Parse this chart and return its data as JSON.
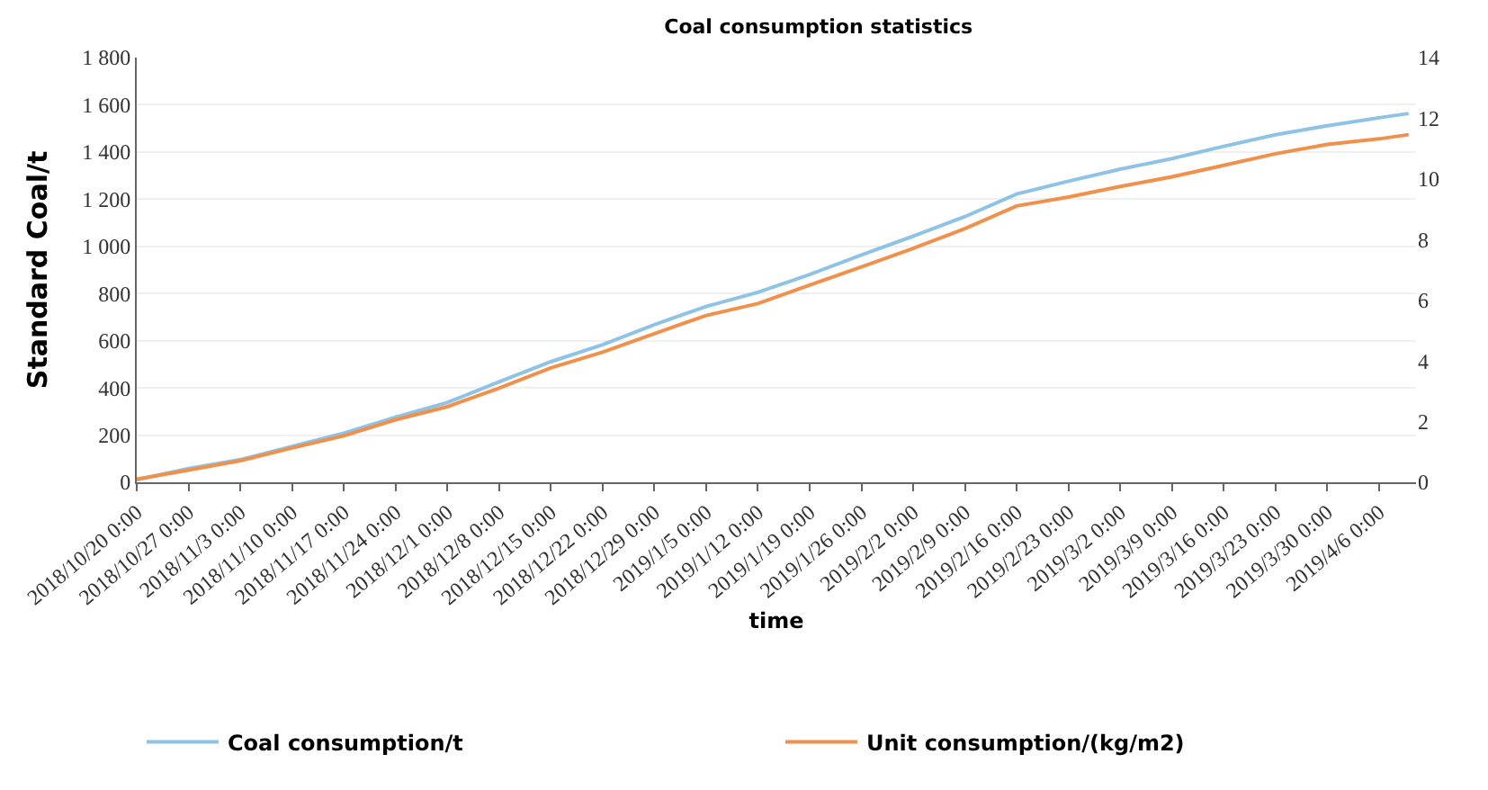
{
  "chart_data": {
    "type": "line",
    "title": "Coal consumption statistics",
    "xlabel": "time",
    "ylabel": "Standard Coal/t",
    "x": [
      "2018-10-20",
      "2018-10-27",
      "2018-11-03",
      "2018-11-10",
      "2018-11-17",
      "2018-11-24",
      "2018-12-01",
      "2018-12-08",
      "2018-12-15",
      "2018-12-22",
      "2018-12-29",
      "2019-01-05",
      "2019-01-12",
      "2019-01-19",
      "2019-01-26",
      "2019-02-02",
      "2019-02-09",
      "2019-02-16",
      "2019-02-23",
      "2019-03-02",
      "2019-03-09",
      "2019-03-16",
      "2019-03-23",
      "2019-03-30",
      "2019-04-06",
      "2019-04-10"
    ],
    "series": [
      {
        "name": "Coal consumption/t",
        "color": "#8ec3e6",
        "values": [
          10,
          58,
          96,
          152,
          208,
          276,
          338,
          426,
          511,
          583,
          668,
          745,
          805,
          880,
          963,
          1043,
          1126,
          1222,
          1276,
          1327,
          1372,
          1424,
          1473,
          1511,
          1545,
          1563
        ]
      },
      {
        "name": "Unit consumption/(kg/m2)",
        "color": "#f0904a",
        "axis": "y2",
        "values": [
          0.1,
          0.4,
          0.71,
          1.13,
          1.53,
          2.06,
          2.49,
          3.1,
          3.77,
          4.29,
          4.9,
          5.5,
          5.89,
          6.5,
          7.1,
          7.71,
          8.36,
          9.11,
          9.4,
          9.75,
          10.07,
          10.45,
          10.83,
          11.14,
          11.32,
          11.46
        ]
      }
    ],
    "xlim": [
      "2018-10-20",
      "2019-04-11"
    ],
    "xticks": [
      {
        "value": "2018-10-20",
        "label": "2018/10/20 0:00"
      },
      {
        "value": "2018-10-27",
        "label": "2018/10/27 0:00"
      },
      {
        "value": "2018-11-03",
        "label": "2018/11/3 0:00"
      },
      {
        "value": "2018-11-10",
        "label": "2018/11/10 0:00"
      },
      {
        "value": "2018-11-17",
        "label": "2018/11/17 0:00"
      },
      {
        "value": "2018-11-24",
        "label": "2018/11/24 0:00"
      },
      {
        "value": "2018-12-01",
        "label": "2018/12/1 0:00"
      },
      {
        "value": "2018-12-08",
        "label": "2018/12/8 0:00"
      },
      {
        "value": "2018-12-15",
        "label": "2018/12/15 0:00"
      },
      {
        "value": "2018-12-22",
        "label": "2018/12/22 0:00"
      },
      {
        "value": "2018-12-29",
        "label": "2018/12/29 0:00"
      },
      {
        "value": "2019-01-05",
        "label": "2019/1/5 0:00"
      },
      {
        "value": "2019-01-12",
        "label": "2019/1/12 0:00"
      },
      {
        "value": "2019-01-19",
        "label": "2019/1/19 0:00"
      },
      {
        "value": "2019-01-26",
        "label": "2019/1/26 0:00"
      },
      {
        "value": "2019-02-02",
        "label": "2019/2/2 0:00"
      },
      {
        "value": "2019-02-09",
        "label": "2019/2/9 0:00"
      },
      {
        "value": "2019-02-16",
        "label": "2019/2/16 0:00"
      },
      {
        "value": "2019-02-23",
        "label": "2019/2/23 0:00"
      },
      {
        "value": "2019-03-02",
        "label": "2019/3/2 0:00"
      },
      {
        "value": "2019-03-09",
        "label": "2019/3/9 0:00"
      },
      {
        "value": "2019-03-16",
        "label": "2019/3/16 0:00"
      },
      {
        "value": "2019-03-23",
        "label": "2019/3/23 0:00"
      },
      {
        "value": "2019-03-30",
        "label": "2019/3/30 0:00"
      },
      {
        "value": "2019-04-06",
        "label": "2019/4/6 0:00"
      }
    ],
    "ylim": [
      0,
      1800
    ],
    "yticks": [
      0,
      200,
      400,
      600,
      800,
      {
        "value": 1000,
        "label": "1 000"
      },
      {
        "value": 1200,
        "label": "1 200"
      },
      {
        "value": 1400,
        "label": "1 400"
      },
      {
        "value": 1600,
        "label": "1 600"
      },
      {
        "value": 1800,
        "label": "1 800"
      }
    ],
    "y2lim": [
      0,
      14
    ],
    "y2ticks": [
      0,
      2,
      4,
      6,
      8,
      10,
      12,
      14
    ],
    "grid": "y",
    "legend": "bottom",
    "marker": "none",
    "line_style": "solid"
  }
}
